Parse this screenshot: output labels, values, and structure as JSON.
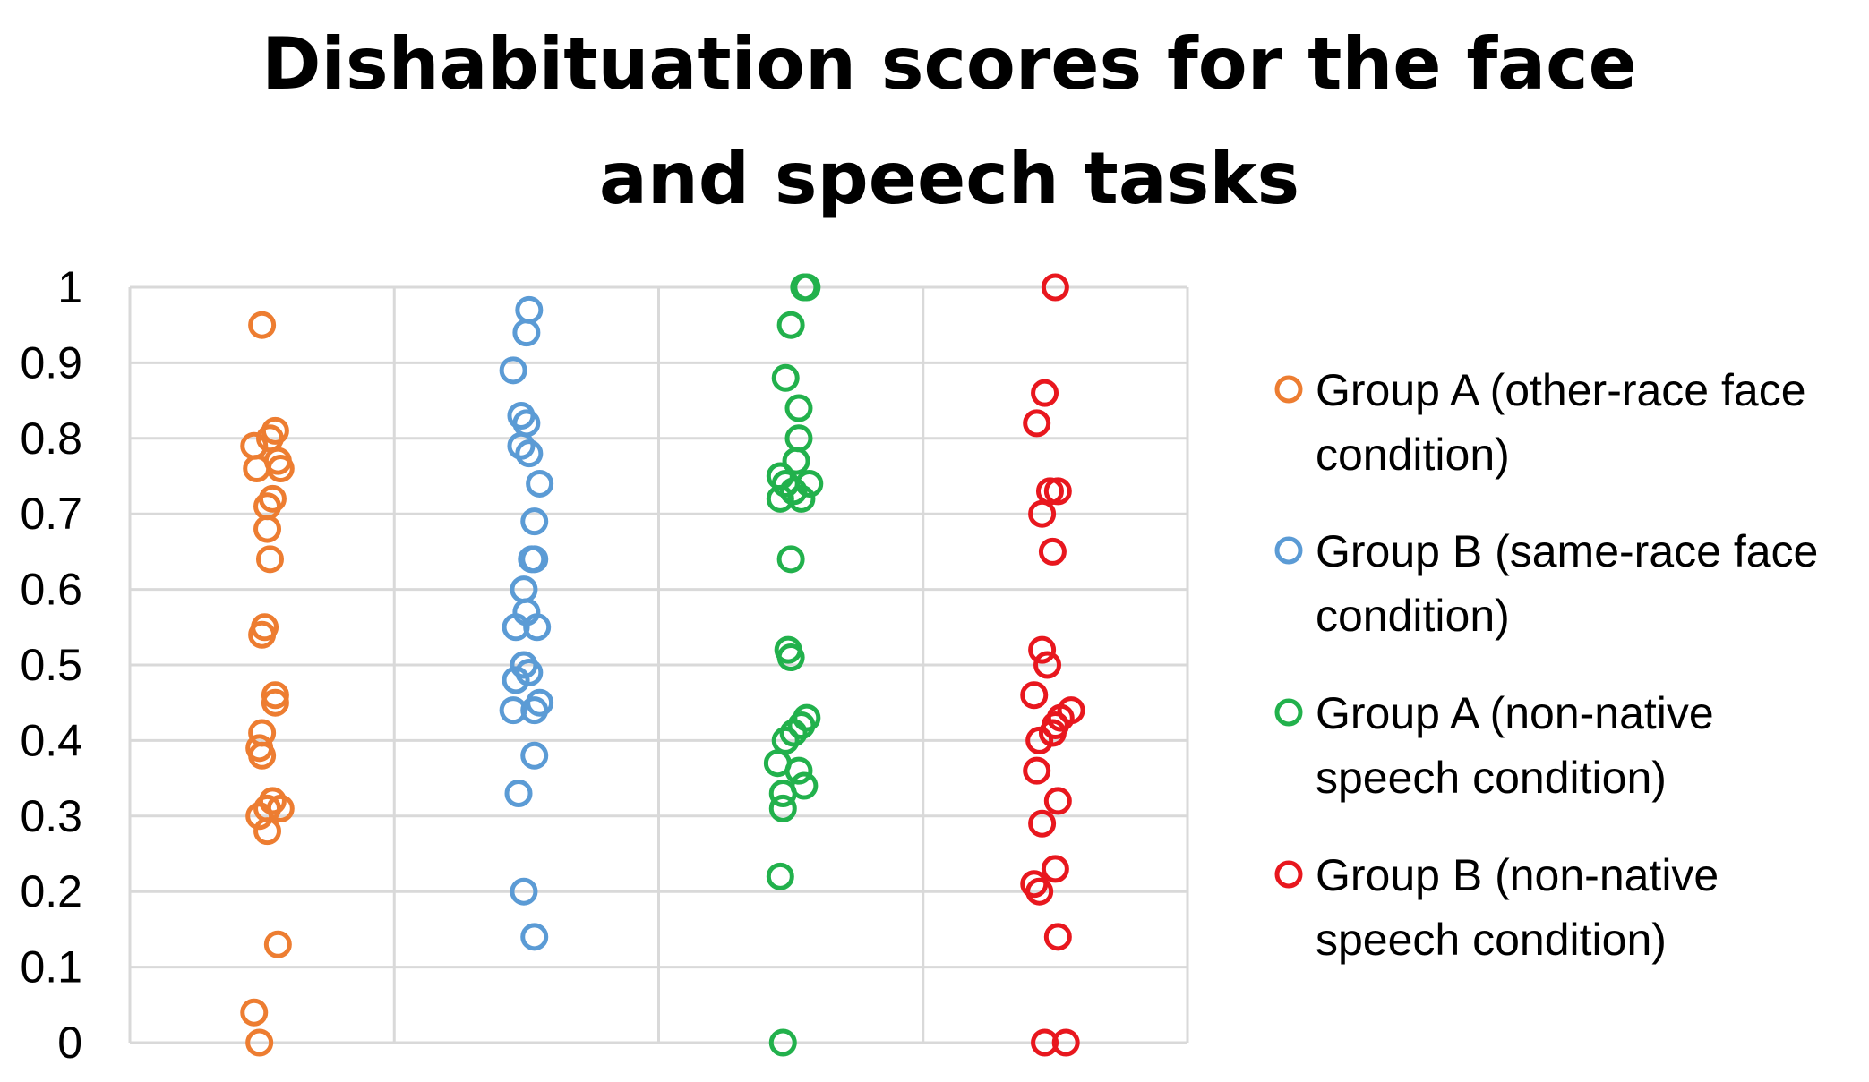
{
  "chart_data": {
    "type": "scatter",
    "title_lines": [
      "Dishabituation scores for the face",
      "and speech tasks"
    ],
    "xlabel": "",
    "ylabel": "",
    "ylim": [
      0,
      1
    ],
    "yticks": [
      "0",
      "0.1",
      "0.2",
      "0.3",
      "0.4",
      "0.5",
      "0.6",
      "0.7",
      "0.8",
      "0.9",
      "1"
    ],
    "grid": true,
    "legend_position": "right",
    "series": [
      {
        "name_lines": [
          "Group A (other-race face",
          "condition)"
        ],
        "color": "#ED7D31",
        "column": 1,
        "values": [
          0.95,
          0.81,
          0.8,
          0.79,
          0.77,
          0.76,
          0.76,
          0.72,
          0.71,
          0.68,
          0.64,
          0.55,
          0.54,
          0.46,
          0.45,
          0.41,
          0.39,
          0.38,
          0.32,
          0.31,
          0.31,
          0.3,
          0.28,
          0.13,
          0.04,
          0.0
        ],
        "jitter": [
          0.0,
          0.05,
          0.03,
          -0.03,
          0.06,
          -0.02,
          0.07,
          0.04,
          0.02,
          0.02,
          0.03,
          0.01,
          0.0,
          0.05,
          0.05,
          0.0,
          -0.01,
          0.0,
          0.04,
          0.07,
          0.02,
          -0.01,
          0.02,
          0.06,
          -0.03,
          -0.01
        ]
      },
      {
        "name_lines": [
          "Group B (same-race face",
          "condition)"
        ],
        "color": "#5B9BD5",
        "column": 2,
        "values": [
          0.97,
          0.94,
          0.89,
          0.83,
          0.82,
          0.79,
          0.78,
          0.74,
          0.69,
          0.64,
          0.64,
          0.6,
          0.57,
          0.55,
          0.55,
          0.5,
          0.49,
          0.48,
          0.45,
          0.44,
          0.44,
          0.38,
          0.33,
          0.2,
          0.14
        ],
        "jitter": [
          0.01,
          0.0,
          -0.05,
          -0.02,
          0.0,
          -0.02,
          0.01,
          0.05,
          0.03,
          0.02,
          0.03,
          -0.01,
          0.0,
          -0.04,
          0.04,
          -0.01,
          0.01,
          -0.04,
          0.05,
          0.03,
          -0.05,
          0.03,
          -0.03,
          -0.01,
          0.03
        ]
      },
      {
        "name_lines": [
          "Group A (non-native",
          "speech condition)"
        ],
        "color": "#22B14C",
        "column": 3,
        "values": [
          1.0,
          1.0,
          0.95,
          0.88,
          0.84,
          0.8,
          0.77,
          0.75,
          0.74,
          0.74,
          0.73,
          0.72,
          0.72,
          0.64,
          0.52,
          0.51,
          0.43,
          0.42,
          0.41,
          0.4,
          0.37,
          0.36,
          0.34,
          0.33,
          0.31,
          0.22,
          0.0
        ],
        "jitter": [
          0.05,
          0.06,
          0.0,
          -0.02,
          0.03,
          0.03,
          0.02,
          -0.04,
          -0.02,
          0.07,
          0.01,
          -0.04,
          0.04,
          0.0,
          -0.01,
          0.0,
          0.06,
          0.04,
          0.01,
          -0.02,
          -0.05,
          0.03,
          0.05,
          -0.03,
          -0.03,
          -0.04,
          -0.03
        ]
      },
      {
        "name_lines": [
          "Group B (non-native",
          "speech condition)"
        ],
        "color": "#E8171E",
        "column": 4,
        "values": [
          1.0,
          0.86,
          0.82,
          0.73,
          0.73,
          0.7,
          0.65,
          0.52,
          0.5,
          0.46,
          0.44,
          0.43,
          0.42,
          0.41,
          0.4,
          0.36,
          0.32,
          0.29,
          0.23,
          0.21,
          0.2,
          0.14,
          0.0,
          0.0
        ],
        "jitter": [
          0.0,
          -0.04,
          -0.07,
          -0.02,
          0.01,
          -0.05,
          -0.01,
          -0.05,
          -0.03,
          -0.08,
          0.06,
          0.02,
          0.0,
          -0.01,
          -0.06,
          -0.07,
          0.01,
          -0.05,
          0.0,
          -0.08,
          -0.06,
          0.01,
          -0.04,
          0.04
        ]
      }
    ]
  }
}
